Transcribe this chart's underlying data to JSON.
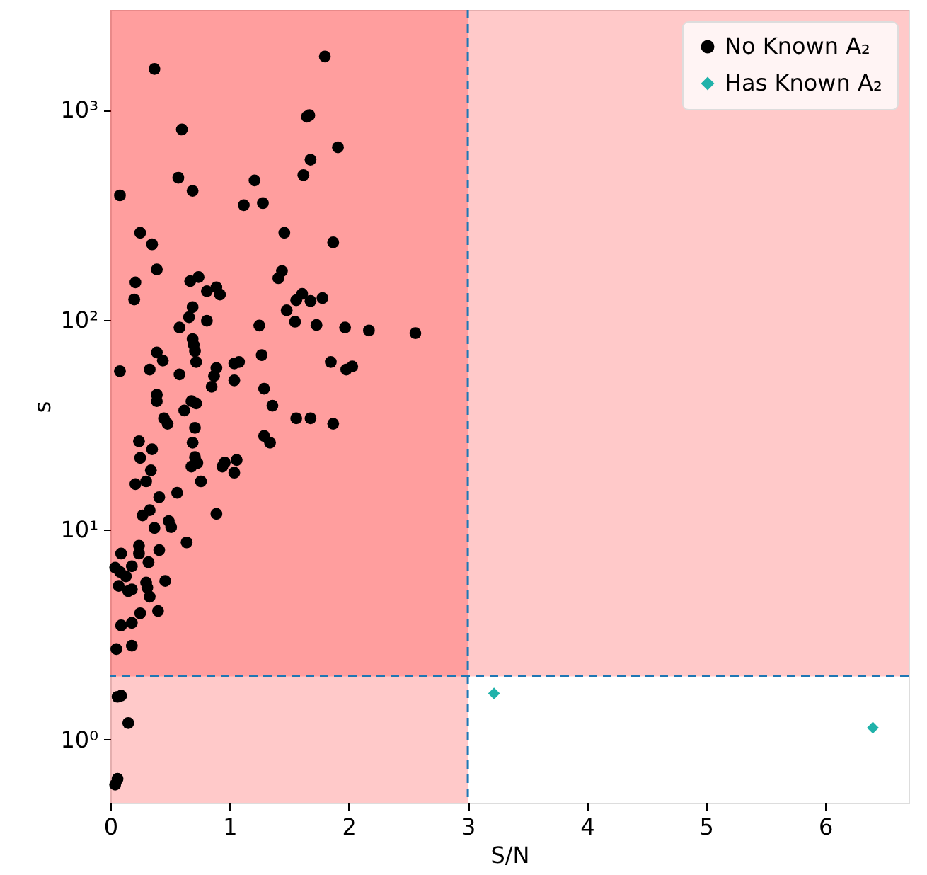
{
  "chart_data": {
    "type": "scatter",
    "xlabel": "S/N",
    "ylabel": "s",
    "log": "y",
    "grid": false,
    "legend": "top right",
    "xlim": [
      0,
      6.7
    ],
    "xticks": [
      0,
      1,
      2,
      3,
      4,
      5,
      6
    ],
    "ylim": [
      0.5,
      3000
    ],
    "yticks": [
      {
        "value": 1,
        "label": "10⁰"
      },
      {
        "value": 10,
        "label": "10¹"
      },
      {
        "value": 100,
        "label": "10²"
      },
      {
        "value": 1000,
        "label": "10³"
      }
    ],
    "bands": [
      {
        "axis": "x",
        "from": 0,
        "to": 3,
        "color": "#ff0000"
      },
      {
        "axis": "y",
        "from": 2,
        "to": 3000,
        "color": "#ff0000"
      }
    ],
    "ref_lines": [
      {
        "axis": "x",
        "value": 3,
        "color": "#1f77b4",
        "line_style": "dashed"
      },
      {
        "axis": "y",
        "value": 2,
        "color": "#1f77b4",
        "line_style": "dashed"
      }
    ],
    "series": [
      {
        "name": "No Known A₂",
        "color": "#000000",
        "marker": "circle",
        "x": [
          0.37,
          1.8,
          0.6,
          1.65,
          1.67,
          1.91,
          1.68,
          1.62,
          0.57,
          0.69,
          1.21,
          1.12,
          1.28,
          0.08,
          0.25,
          0.35,
          1.46,
          1.87,
          0.39,
          0.21,
          0.2,
          0.67,
          0.74,
          0.81,
          0.89,
          0.92,
          1.41,
          1.44,
          1.56,
          1.61,
          1.68,
          1.78,
          0.69,
          0.66,
          0.81,
          0.58,
          1.25,
          1.48,
          1.55,
          1.73,
          1.97,
          2.17,
          2.56,
          0.69,
          0.7,
          0.71,
          0.39,
          0.44,
          0.33,
          0.08,
          0.58,
          0.72,
          0.89,
          0.87,
          0.85,
          1.04,
          1.08,
          1.04,
          1.27,
          1.29,
          1.36,
          1.85,
          1.98,
          2.03,
          0.39,
          0.39,
          0.62,
          0.68,
          0.72,
          0.45,
          0.48,
          1.56,
          1.68,
          1.87,
          0.71,
          1.29,
          1.34,
          0.24,
          0.35,
          0.25,
          0.69,
          0.71,
          0.73,
          0.68,
          0.96,
          0.94,
          1.06,
          1.04,
          0.76,
          0.34,
          0.3,
          0.21,
          0.56,
          0.41,
          0.89,
          0.27,
          0.33,
          0.49,
          0.51,
          0.37,
          0.64,
          0.24,
          0.24,
          0.09,
          0.41,
          0.32,
          0.18,
          0.04,
          0.08,
          0.13,
          0.07,
          0.15,
          0.18,
          0.3,
          0.31,
          0.33,
          0.46,
          0.4,
          0.25,
          0.09,
          0.18,
          0.05,
          0.18,
          0.06,
          0.09,
          0.15,
          0.04,
          0.06
        ],
        "values": [
          1570,
          1800,
          808,
          930,
          945,
          664,
          580,
          490,
          476,
          412,
          462,
          352,
          360,
          392,
          260,
          229,
          260,
          234,
          174,
          151,
          125,
          153,
          160,
          137,
          143,
          132,
          158,
          171,
          124,
          133,
          123,
          127,
          115,
          103,
          99,
          92,
          94,
          111,
          98,
          94.5,
          92,
          89,
          86.5,
          81,
          76,
          71,
          70,
          64,
          58,
          57,
          55,
          63,
          59,
          54,
          48,
          62,
          63,
          51.5,
          68,
          47,
          39,
          63,
          58,
          60,
          44,
          41,
          37,
          41,
          40,
          34,
          32,
          34,
          34,
          32,
          30.6,
          28,
          26,
          26.4,
          24.2,
          22,
          26,
          22.2,
          20.8,
          20,
          20.9,
          20,
          21.5,
          18.7,
          17,
          19.2,
          17,
          16.5,
          15,
          14.3,
          11.9,
          11.7,
          12.4,
          11,
          10.3,
          10.2,
          8.7,
          8.4,
          7.7,
          7.7,
          8.0,
          7.0,
          6.7,
          6.6,
          6.3,
          6.0,
          5.4,
          5.1,
          5.2,
          5.6,
          5.3,
          4.8,
          5.7,
          4.1,
          4.0,
          3.5,
          3.6,
          2.7,
          2.8,
          1.6,
          1.62,
          1.2,
          0.61,
          0.65
        ]
      },
      {
        "name": "Has Known A₂",
        "color": "#20b2aa",
        "marker": "diamond",
        "x": [
          3.22,
          6.4
        ],
        "values": [
          1.66,
          1.14
        ]
      }
    ]
  }
}
